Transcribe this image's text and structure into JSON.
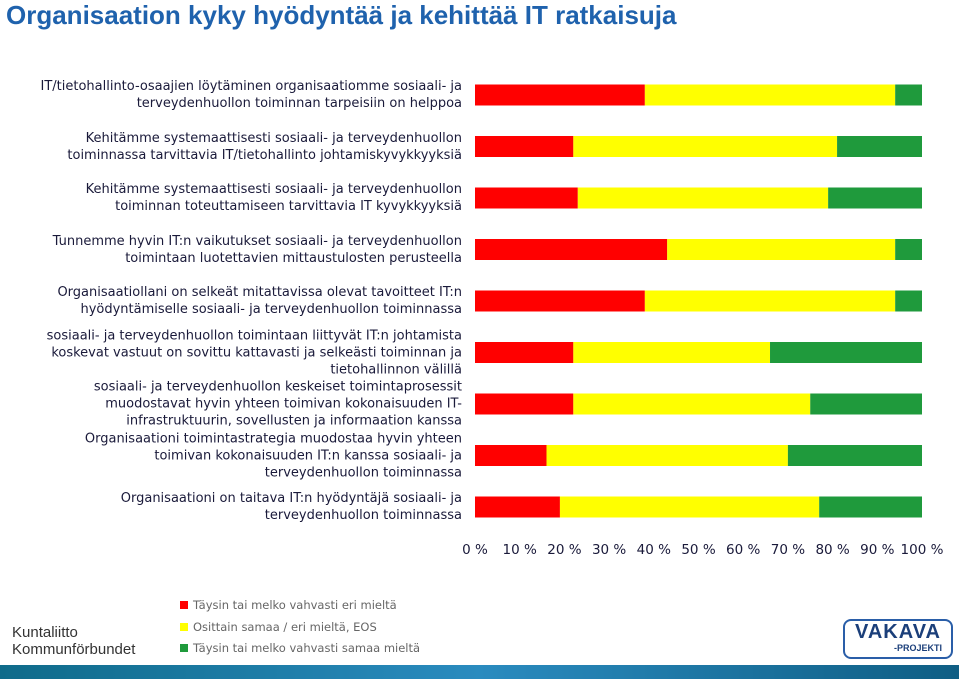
{
  "chart_data": {
    "type": "stacked-bar-horizontal",
    "title": "Organisaation kyky hyödyntää ja kehittää IT ratkaisuja",
    "categories": [
      "IT/tietohallinto-osaajien löytäminen organisaatiomme sosiaali- ja\nterveydenhuollon toiminnan tarpeisiin on helppoa",
      "Kehitämme systemaattisesti sosiaali- ja terveydenhuollon\ntoiminnassa tarvittavia IT/tietohallinto johtamiskyvykkyyksiä",
      "Kehitämme systemaattisesti sosiaali- ja terveydenhuollon\ntoiminnan toteuttamiseen tarvittavia IT kyvykkyyksiä",
      "Tunnemme hyvin IT:n vaikutukset sosiaali- ja terveydenhuollon\ntoimintaan luotettavien mittaustulosten perusteella",
      "Organisaatiollani on selkeät mitattavissa olevat tavoitteet IT:n\nhyödyntämiselle sosiaali- ja terveydenhuollon toiminnassa",
      "sosiaali- ja terveydenhuollon toimintaan liittyvät IT:n johtamista\nkoskevat vastuut on sovittu kattavasti ja selkeästi toiminnan ja\ntietohallinnon välillä",
      "sosiaali- ja terveydenhuollon keskeiset toimintaprosessit\nmuodostavat hyvin yhteen toimivan kokonaisuuden IT-\ninfrastruktuurin, sovellusten ja informaation kanssa",
      "Organisaationi toimintastrategia muodostaa hyvin yhteen\ntoimivan kokonaisuuden IT:n kanssa sosiaali- ja\nterveydenhuollon toiminnassa",
      "Organisaationi on taitava IT:n hyödyntäjä sosiaali- ja\nterveydenhuollon toiminnassa"
    ],
    "series": [
      {
        "name": "Täysin tai melko vahvasti eri mieltä",
        "color": "#ff0000",
        "values": [
          38,
          22,
          23,
          43,
          38,
          22,
          22,
          16,
          19
        ]
      },
      {
        "name": "Osittain samaa / eri mieltä, EOS",
        "color": "#ffff00",
        "values": [
          56,
          59,
          56,
          51,
          56,
          44,
          53,
          54,
          58
        ]
      },
      {
        "name": "Täysin tai melko vahvasti samaa mieltä",
        "color": "#1f9a3c",
        "values": [
          6,
          19,
          21,
          6,
          6,
          34,
          25,
          30,
          23
        ]
      }
    ],
    "xlim": [
      0,
      100
    ],
    "xticks": [
      {
        "value": 0,
        "label": "0 %"
      },
      {
        "value": 10,
        "label": "10 %"
      },
      {
        "value": 20,
        "label": "20 %"
      },
      {
        "value": 30,
        "label": "30 %"
      },
      {
        "value": 40,
        "label": "40 %"
      },
      {
        "value": 50,
        "label": "50 %"
      },
      {
        "value": 60,
        "label": "60 %"
      },
      {
        "value": 70,
        "label": "70 %"
      },
      {
        "value": 80,
        "label": "80 %"
      },
      {
        "value": 90,
        "label": "90 %"
      },
      {
        "value": 100,
        "label": "100 %"
      }
    ],
    "grid": false
  },
  "logos": {
    "left": [
      "Kuntaliitto",
      "Kommunförbundet"
    ],
    "right": [
      "VAKAVA",
      "-PROJEKTI"
    ]
  }
}
